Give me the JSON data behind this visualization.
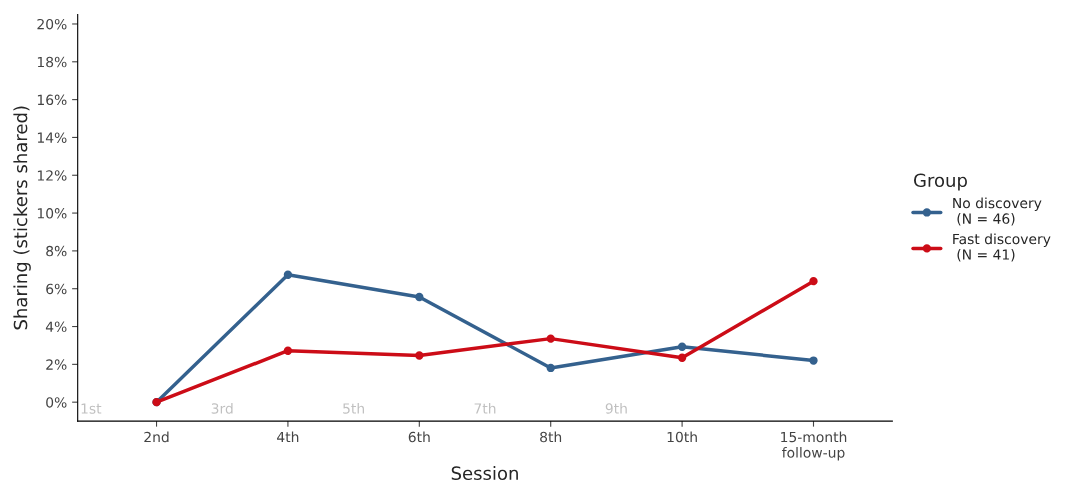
{
  "chart_data": {
    "type": "line",
    "xlabel": "Session",
    "ylabel": "Sharing (stickers shared)",
    "legend_title": "Group",
    "categories": [
      "2nd",
      "4th",
      "6th",
      "8th",
      "10th",
      "15-month\nfollow-up"
    ],
    "series": [
      {
        "name": "No discovery\n (N = 46)",
        "color": "#34618e",
        "values": [
          0,
          6.74,
          5.56,
          1.81,
          2.93,
          2.2
        ]
      },
      {
        "name": "Fast discovery\n (N = 41)",
        "color": "#cc0c17",
        "values": [
          0,
          2.72,
          2.47,
          3.36,
          2.35,
          6.4
        ]
      }
    ],
    "ylim": [
      -1,
      20.5
    ],
    "yticks": [
      {
        "value": 0,
        "label": "0%"
      },
      {
        "value": 2,
        "label": "2%"
      },
      {
        "value": 4,
        "label": "4%"
      },
      {
        "value": 6,
        "label": "6%"
      },
      {
        "value": 8,
        "label": "8%"
      },
      {
        "value": 10,
        "label": "10%"
      },
      {
        "value": 12,
        "label": "12%"
      },
      {
        "value": 14,
        "label": "14%"
      },
      {
        "value": 16,
        "label": "16%"
      },
      {
        "value": 18,
        "label": "18%"
      },
      {
        "value": 20,
        "label": "20%"
      }
    ],
    "annotations": [
      "1st",
      "3rd",
      "5th",
      "7th",
      "9th"
    ],
    "marker": "circle",
    "line_style": "solid",
    "grid": false,
    "legend": "right"
  }
}
